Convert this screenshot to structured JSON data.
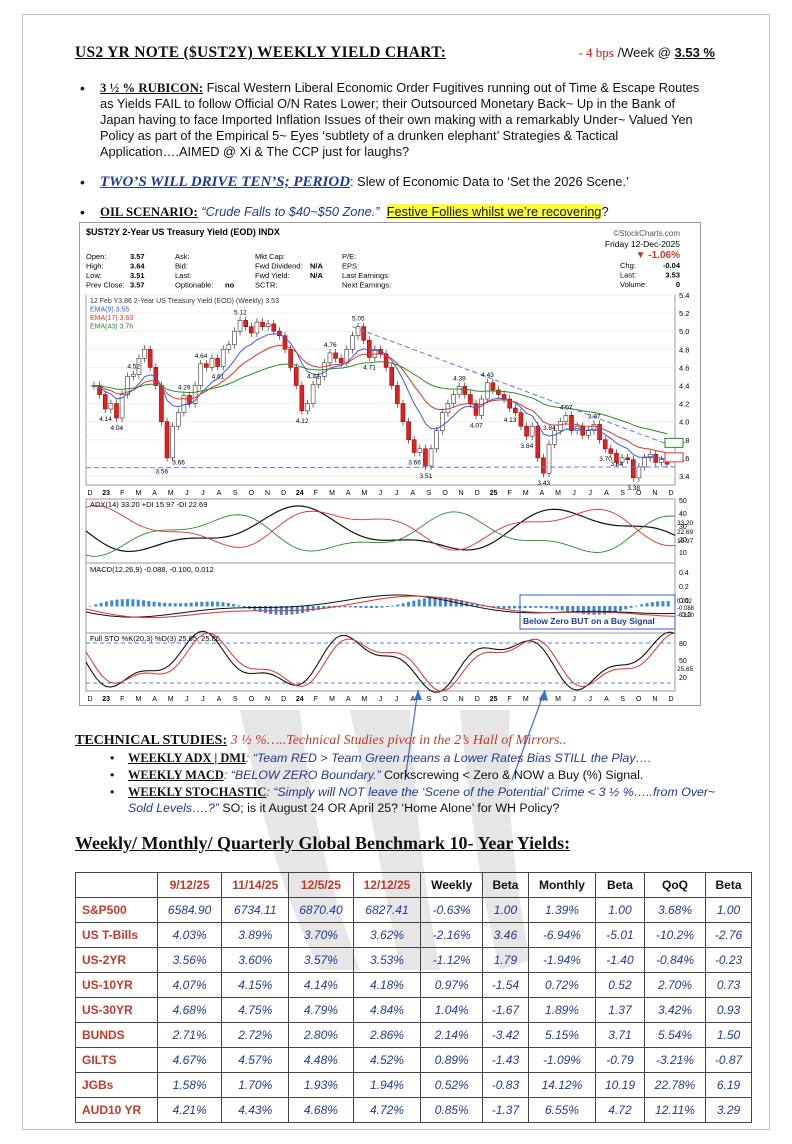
{
  "header": {
    "title": "US2 YR NOTE ($UST2Y) WEEKLY YIELD CHART:",
    "change": "- 4 bps",
    "period": "/Week @",
    "value": "3.53 %"
  },
  "bullets": [
    {
      "lead": "3 ½ % RUBICON:",
      "text": " Fiscal Western Liberal Economic Order Fugitives running out of Time & Escape Routes as Yields FAIL to follow Official O/N Rates Lower; their Outsourced Monetary Back~ Up in the Bank of Japan having to face Imported Inflation Issues of their own making with a remarkably Under~ Valued Yen Policy as part of the Empirical 5~ Eyes ‘subtlety of a drunken elephant’ Strategies & Tactical Application….AIMED @ Xi & The CCP just for laughs?"
    },
    {
      "lead": "TWO’S WILL DRIVE TEN’S; PERIOD",
      "text": ":   Slew of Economic Data to ‘Set the 2026 Scene.’"
    },
    {
      "lead": "OIL SCENARIO:",
      "quote": " “Crude Falls to $40~$50 Zone.”",
      "highlight": "Festive Follies whilst we’re recovering",
      "end": "?"
    }
  ],
  "chart_data": {
    "type": "line",
    "title": "$UST2Y 2-Year US Treasury Yield (EOD) INDX",
    "source": "©StockCharts.com",
    "date": "Friday  12-Dec-2025",
    "pct_change": "▼ -1.06%",
    "quote": {
      "Open": "3.57",
      "High": "3.64",
      "Low": "3.51",
      "Prev Close": "3.57",
      "Chg": "-0.04",
      "Last": "3.53",
      "Volume": "0",
      "Fwd Dividend": "N/A",
      "Fwd Yield": "N/A",
      "Optionable": "no"
    },
    "quote_labels_mid": [
      "Ask:",
      "Bid:",
      "Last:",
      "Optionable:"
    ],
    "quote_labels_right": [
      "Mkt Cap:",
      "Fwd Dividend:",
      "Fwd Yield:",
      "SCTR:"
    ],
    "quote_labels_far": [
      "P/E:",
      "EPS:",
      "Last Earnings:",
      "Next Earnings:"
    ],
    "legend": [
      "12 Feb Y3.86 2-Year US Treasury Yield (EOD) (Weekly) 3.53",
      "EMA(9) 3.55",
      "EMA(17) 3.63",
      "EMA(43) 3.76"
    ],
    "ylim": [
      3.3,
      5.4
    ],
    "yticks": [
      3.4,
      3.6,
      3.8,
      4.0,
      4.2,
      4.4,
      4.6,
      4.8,
      5.0,
      5.2,
      5.4
    ],
    "x_labels": [
      "D",
      "23",
      "F",
      "M",
      "A",
      "M",
      "J",
      "J",
      "A",
      "S",
      "O",
      "N",
      "D",
      "24",
      "F",
      "M",
      "A",
      "M",
      "J",
      "J",
      "A",
      "S",
      "O",
      "N",
      "D",
      "25",
      "F",
      "M",
      "A",
      "M",
      "J",
      "J",
      "A",
      "S",
      "O",
      "N",
      "D"
    ],
    "price": [
      4.4,
      4.3,
      4.14,
      4.2,
      4.04,
      4.3,
      4.5,
      4.52,
      4.7,
      4.8,
      4.6,
      4.4,
      4.0,
      3.6,
      3.95,
      4.1,
      4.29,
      4.2,
      4.4,
      4.64,
      4.6,
      4.7,
      4.61,
      4.8,
      4.85,
      5.0,
      5.12,
      5.05,
      4.98,
      5.1,
      5.05,
      5.08,
      5.0,
      4.95,
      4.8,
      4.6,
      4.4,
      4.12,
      4.2,
      4.41,
      4.5,
      4.65,
      4.76,
      4.7,
      4.65,
      4.8,
      4.95,
      5.05,
      4.9,
      4.71,
      4.8,
      4.75,
      4.6,
      4.4,
      4.2,
      4.0,
      3.8,
      3.66,
      3.7,
      3.51,
      3.7,
      3.9,
      4.1,
      4.2,
      4.3,
      4.39,
      4.3,
      4.2,
      4.07,
      4.25,
      4.43,
      4.35,
      4.3,
      4.25,
      4.15,
      4.1,
      3.95,
      3.84,
      3.95,
      3.6,
      3.43,
      3.75,
      3.9,
      4.0,
      4.07,
      3.9,
      3.95,
      3.85,
      3.9,
      3.97,
      3.8,
      3.7,
      3.65,
      3.55,
      3.6,
      3.58,
      3.38,
      3.5,
      3.6,
      3.64,
      3.55,
      3.58,
      3.53
    ],
    "annotations": [
      "4.14",
      "4.04",
      "4.52",
      "3.56",
      "3.66",
      "4.29",
      "4.64",
      "5.12",
      "4.61",
      "4.12",
      "4.41",
      "4.76",
      "5.05",
      "4.71",
      "3.66",
      "3.51",
      "4.39",
      "4.07",
      "4.43",
      "4.13",
      "3.84",
      "3.43",
      "3.84",
      "4.07",
      "3.97",
      "3.70",
      "3.64",
      "3.38"
    ],
    "adx": {
      "label": "ADX(14) 33.20 +DI 15.97 -DI 22.69",
      "ticks": [
        "50",
        "40",
        "30",
        "20",
        "10"
      ],
      "right_values": [
        "33.20",
        "22.69",
        "15.97"
      ]
    },
    "macd": {
      "label": "MACD(12,26,9) -0.088, -0.100, 0.012",
      "ticks": [
        "0.4",
        "0.2",
        "0.0",
        "-0.2"
      ],
      "right_values": [
        "0.012",
        "-0.088",
        "-0.100"
      ],
      "note": "Below Zero BUT on a Buy Signal"
    },
    "sto": {
      "label": "Full STO %K(20,3) %D(3) 25.65, 25.86",
      "ticks": [
        "80",
        "50",
        "20"
      ],
      "right_value": "25.65"
    }
  },
  "technical": {
    "title": "TECHNICAL STUDIES:",
    "subtitle": " 3 ½ %…..Technical Studies pivot in the 2’s Hall of Mirrors..",
    "items": [
      {
        "lead": "WEEKLY ADX | DMI",
        "quote": ": “Team RED > Team Green means a Lower Rates Bias STILL the Play….",
        "text": ""
      },
      {
        "lead": "WEEKLY MACD",
        "quote": ": “BELOW ZERO Boundary.”",
        "text": "     Corkscrewing < Zero & NOW a Buy (%) Signal."
      },
      {
        "lead": "WEEKLY STOCHASTIC",
        "quote": ": “Simply will NOT leave the ‘Scene of the Potential’ Crime < 3 ½ %…..from Over~ Sold Levels….?”",
        "text": "    SO; is it August 24 OR April 25? ‘Home Alone’ for WH Policy?"
      }
    ]
  },
  "table": {
    "title": "Weekly/ Monthly/ Quarterly Global Benchmark 10- Year Yields",
    "colon": ":",
    "headers": [
      "",
      "9/12/25",
      "11/14/25",
      "12/5/25",
      "12/12/25",
      "Weekly",
      "Beta",
      "Monthly",
      "Beta",
      "QoQ",
      "Beta"
    ],
    "rows": [
      [
        "S&P500",
        "6584.90",
        "6734.11",
        "6870.40",
        "6827.41",
        "-0.63%",
        "1.00",
        "1.39%",
        "1.00",
        "3.68%",
        "1.00"
      ],
      [
        "US T-Bills",
        "4.03%",
        "3.89%",
        "3.70%",
        "3.62%",
        "-2.16%",
        "3.46",
        "-6.94%",
        "-5.01",
        "-10.2%",
        "-2.76"
      ],
      [
        "US-2YR",
        "3.56%",
        "3.60%",
        "3.57%",
        "3.53%",
        "-1.12%",
        "1.79",
        "-1.94%",
        "-1.40",
        "-0.84%",
        "-0.23"
      ],
      [
        "US-10YR",
        "4.07%",
        "4.15%",
        "4.14%",
        "4.18%",
        "0.97%",
        "-1.54",
        "0.72%",
        "0.52",
        "2.70%",
        "0.73"
      ],
      [
        "US-30YR",
        "4.68%",
        "4.75%",
        "4.79%",
        "4.84%",
        "1.04%",
        "-1.67",
        "1.89%",
        "1.37",
        "3.42%",
        "0.93"
      ],
      [
        "BUNDS",
        "2.71%",
        "2.72%",
        "2.80%",
        "2.86%",
        "2.14%",
        "-3.42",
        "5.15%",
        "3.71",
        "5.54%",
        "1.50"
      ],
      [
        "GILTS",
        "4.67%",
        "4.57%",
        "4.48%",
        "4.52%",
        "0.89%",
        "-1.43",
        "-1.09%",
        "-0.79",
        "-3.21%",
        "-0.87"
      ],
      [
        "JGBs",
        "1.58%",
        "1.70%",
        "1.93%",
        "1.94%",
        "0.52%",
        "-0.83",
        "14.12%",
        "10.19",
        "22.78%",
        "6.19"
      ],
      [
        "AUD10 YR",
        "4.21%",
        "4.43%",
        "4.68%",
        "4.72%",
        "0.85%",
        "-1.37",
        "6.55%",
        "4.72",
        "12.11%",
        "3.29"
      ]
    ]
  }
}
